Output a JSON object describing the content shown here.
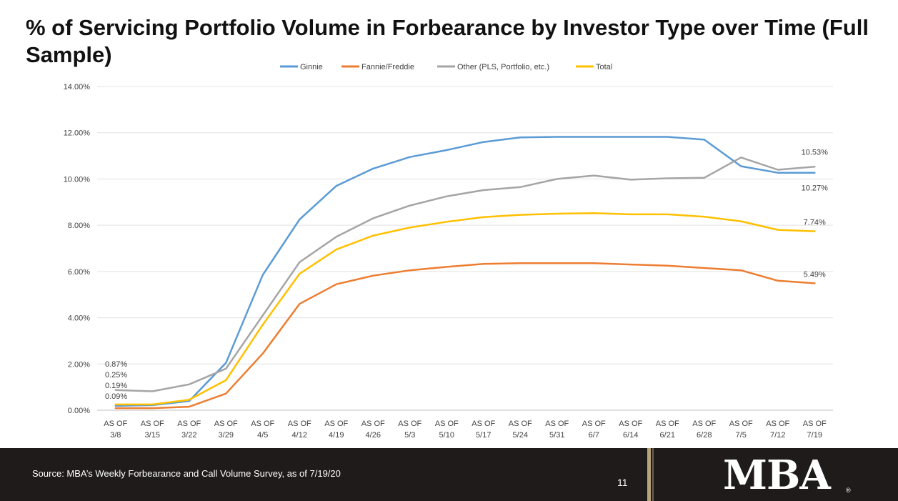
{
  "title": "% of Servicing Portfolio Volume in Forbearance by Investor Type over Time (Full Sample)",
  "footer": {
    "source": "Source: MBA’s Weekly Forbearance and Call Volume Survey, as of 7/19/20",
    "page_number": "11",
    "logo": "MBA",
    "logo_mark": "®"
  },
  "chart_data": {
    "type": "line",
    "categories": [
      "AS OF 3/8",
      "AS OF 3/15",
      "AS OF 3/22",
      "AS OF 3/29",
      "AS OF 4/5",
      "AS OF 4/12",
      "AS OF 4/19",
      "AS OF 4/26",
      "AS OF 5/3",
      "AS OF 5/10",
      "AS OF 5/17",
      "AS OF 5/24",
      "AS OF 5/31",
      "AS OF 6/7",
      "AS OF 6/14",
      "AS OF 6/21",
      "AS OF 6/28",
      "AS OF 7/5",
      "AS OF 7/12",
      "AS OF 7/19"
    ],
    "ylim": [
      0,
      14
    ],
    "yticks": [
      "0.00%",
      "2.00%",
      "4.00%",
      "6.00%",
      "8.00%",
      "10.00%",
      "12.00%",
      "14.00%"
    ],
    "grid": true,
    "legend_position": "top",
    "series": [
      {
        "name": "Ginnie",
        "color": "#5b9bd5",
        "values": [
          0.19,
          0.22,
          0.4,
          2.05,
          5.85,
          8.25,
          9.7,
          10.45,
          10.95,
          11.25,
          11.6,
          11.8,
          11.82,
          11.82,
          11.82,
          11.82,
          11.7,
          10.55,
          10.27,
          10.27
        ]
      },
      {
        "name": "Fannie/Freddie",
        "color": "#ed7d31",
        "values": [
          0.09,
          0.09,
          0.15,
          0.72,
          2.45,
          4.6,
          5.45,
          5.82,
          6.05,
          6.2,
          6.33,
          6.36,
          6.36,
          6.36,
          6.3,
          6.25,
          6.15,
          6.05,
          5.6,
          5.49
        ]
      },
      {
        "name": "Other (PLS, Portfolio, etc.)",
        "color": "#a5a5a5",
        "values": [
          0.87,
          0.82,
          1.12,
          1.8,
          4.1,
          6.4,
          7.5,
          8.3,
          8.85,
          9.25,
          9.52,
          9.65,
          10.0,
          10.15,
          9.97,
          10.03,
          10.05,
          10.93,
          10.4,
          10.53
        ]
      },
      {
        "name": "Total",
        "color": "#ffc000",
        "values": [
          0.25,
          0.25,
          0.45,
          1.3,
          3.7,
          5.9,
          6.95,
          7.55,
          7.9,
          8.15,
          8.35,
          8.45,
          8.5,
          8.52,
          8.47,
          8.47,
          8.37,
          8.17,
          7.8,
          7.74
        ]
      }
    ],
    "start_labels": [
      "0.87%",
      "0.25%",
      "0.19%",
      "0.09%"
    ],
    "end_labels": [
      {
        "series": "Other (PLS, Portfolio, etc.)",
        "text": "10.53%"
      },
      {
        "series": "Ginnie",
        "text": "10.27%"
      },
      {
        "series": "Total",
        "text": "7.74%"
      },
      {
        "series": "Fannie/Freddie",
        "text": "5.49%"
      }
    ]
  }
}
